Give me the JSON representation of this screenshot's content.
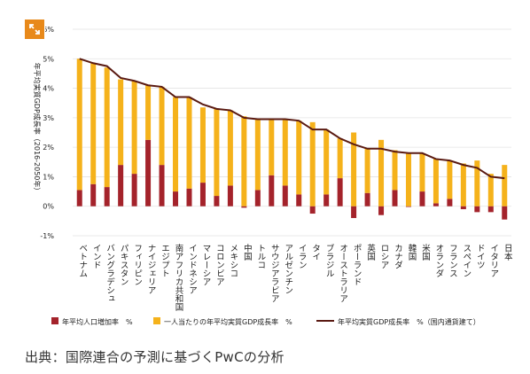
{
  "source_text": "出典：国際連合の予測に基づくPwCの分析",
  "colors": {
    "population": "#a4232b",
    "per_capita": "#f5b21b",
    "total_line": "#5a1a12",
    "accent_button": "#e8891a"
  },
  "chart_data": {
    "type": "bar",
    "stacked": true,
    "ylabel": "年平均実質GDP成長率（2016-2050年）",
    "ylim": [
      -1,
      6
    ],
    "yticks": [
      "6%",
      "5%",
      "4%",
      "3%",
      "2%",
      "1%",
      "0%",
      "-1%"
    ],
    "legend_position": "bottom",
    "categories": [
      "ベトナム",
      "インド",
      "バングラデシュ",
      "パキスタン",
      "フィリピン",
      "ナイジェリア",
      "エジプト",
      "南アフリカ共和国",
      "インドネシア",
      "マレーシア",
      "コロンビア",
      "メキシコ",
      "中国",
      "トルコ",
      "サウジアラビア",
      "アルゼンチン",
      "イラン",
      "タイ",
      "ブラジル",
      "オーストラリア",
      "ポーランド",
      "英国",
      "ロシア",
      "カナダ",
      "韓国",
      "米国",
      "オランダ",
      "フランス",
      "スペイン",
      "ドイツ",
      "イタリア",
      "日本"
    ],
    "series": [
      {
        "name": "年平均人口増加率　%",
        "kind": "bar",
        "values": [
          0.55,
          0.75,
          0.65,
          1.4,
          1.1,
          2.25,
          1.4,
          0.5,
          0.6,
          0.8,
          0.35,
          0.7,
          -0.05,
          0.55,
          1.05,
          0.7,
          0.4,
          -0.25,
          0.4,
          0.95,
          -0.4,
          0.45,
          -0.3,
          0.55,
          0.0,
          0.5,
          0.1,
          0.25,
          -0.1,
          -0.2,
          -0.2,
          -0.45
        ]
      },
      {
        "name": "一人当たりの年平均実質GDP成長率　%",
        "kind": "bar",
        "values": [
          4.45,
          4.1,
          4.05,
          2.9,
          3.15,
          1.85,
          2.65,
          3.2,
          3.1,
          2.55,
          2.95,
          2.55,
          3.05,
          2.4,
          1.9,
          2.25,
          2.5,
          2.85,
          2.2,
          1.35,
          2.5,
          1.5,
          2.25,
          1.35,
          1.8,
          1.3,
          1.5,
          1.3,
          1.45,
          1.55,
          1.1,
          1.4
        ]
      },
      {
        "name": "年平均実質GDP成長率　%（国内通貨建て）",
        "kind": "line",
        "values": [
          5.0,
          4.85,
          4.75,
          4.35,
          4.25,
          4.1,
          4.05,
          3.7,
          3.7,
          3.45,
          3.3,
          3.25,
          3.0,
          2.95,
          2.95,
          2.95,
          2.9,
          2.6,
          2.6,
          2.3,
          2.1,
          1.95,
          1.95,
          1.85,
          1.8,
          1.8,
          1.6,
          1.55,
          1.4,
          1.3,
          1.0,
          0.95
        ]
      }
    ]
  }
}
